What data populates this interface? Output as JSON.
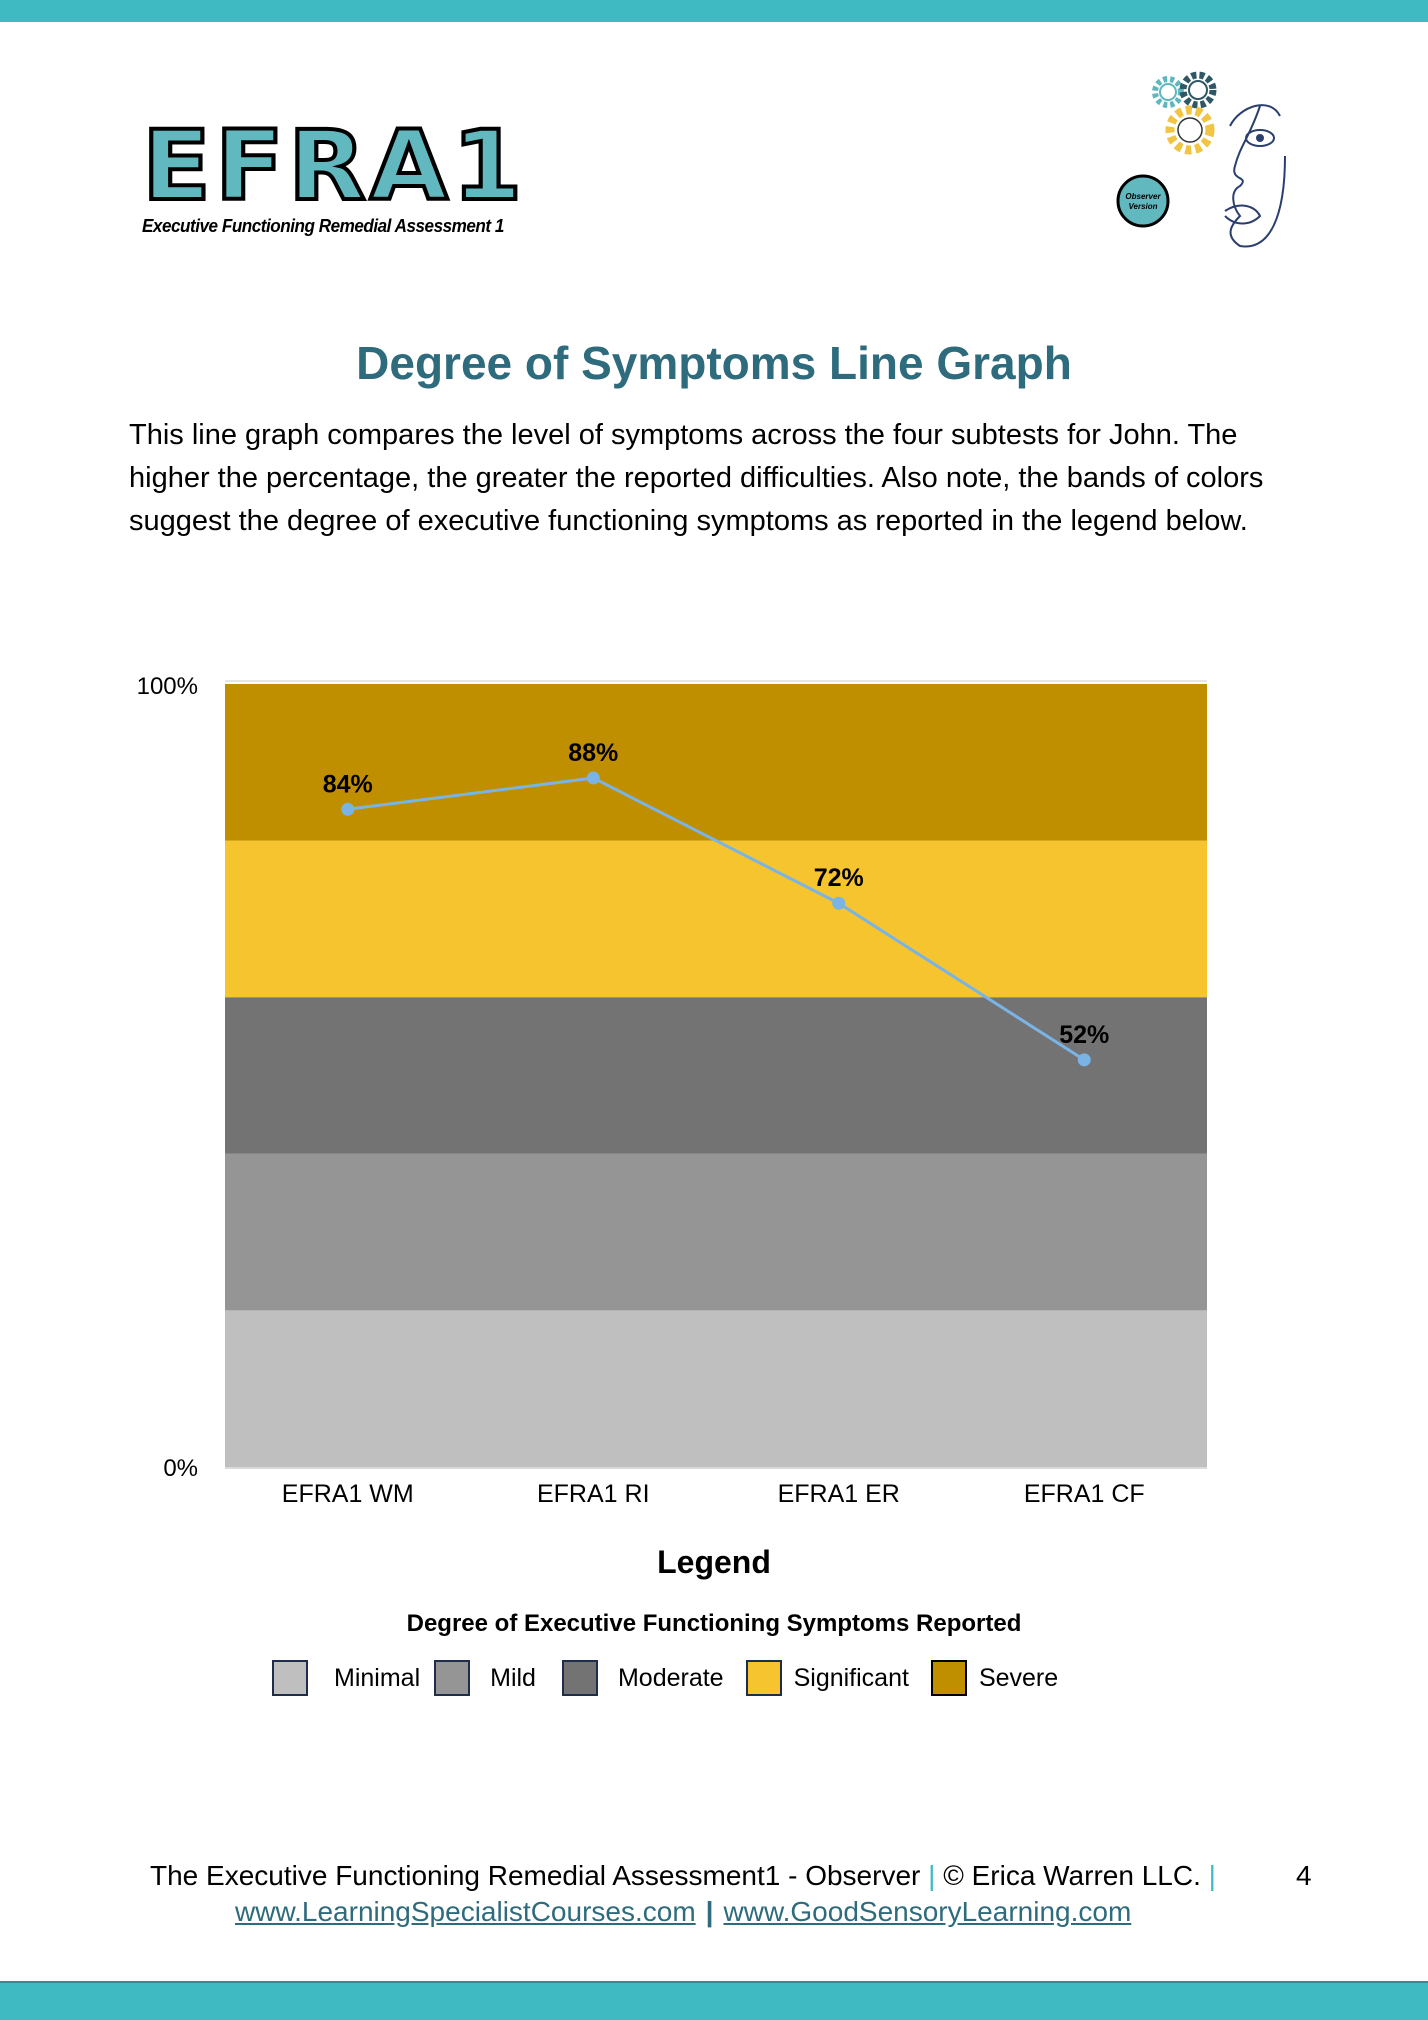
{
  "header": {
    "logo_text": "EFRA1",
    "logo_subtitle": "Executive Functioning Remedial Assessment 1",
    "badge_text": "Observer Version"
  },
  "title": "Degree of Symptoms Line Graph",
  "intro": "This line graph compares the level of symptoms across the four subtests for John. The higher the percentage, the greater the reported difficulties. Also note, the bands of colors suggest the degree of executive functioning symptoms as reported in the legend below.",
  "chart_data": {
    "type": "line",
    "categories": [
      "EFRA1 WM",
      "EFRA1 RI",
      "EFRA1 ER",
      "EFRA1 CF"
    ],
    "values": [
      84,
      88,
      72,
      52
    ],
    "data_labels": [
      "84%",
      "88%",
      "72%",
      "52%"
    ],
    "ylim": [
      0,
      100
    ],
    "y_ticks": [
      "0%",
      "100%"
    ],
    "line_color": "#7ab4e4",
    "bands": [
      {
        "name": "Minimal",
        "from": 0,
        "to": 20,
        "color": "#bfbfbf"
      },
      {
        "name": "Mild",
        "from": 20,
        "to": 40,
        "color": "#959595"
      },
      {
        "name": "Moderate",
        "from": 40,
        "to": 60,
        "color": "#737373"
      },
      {
        "name": "Significant",
        "from": 60,
        "to": 80,
        "color": "#f5c42f"
      },
      {
        "name": "Severe",
        "from": 80,
        "to": 100,
        "color": "#bf8f00"
      }
    ]
  },
  "legend": {
    "title": "Legend",
    "subtitle": "Degree of Executive Functioning Symptoms Reported",
    "items": [
      "Minimal",
      "Mild",
      "Moderate",
      "Significant",
      "Severe"
    ]
  },
  "footer": {
    "line1": "The Executive Functioning Remedial Assessment1 - Observer",
    "sep": "|",
    "copyright": "© Erica Warren LLC.",
    "page_number": "4",
    "link1": "www.LearningSpecialistCourses.com",
    "link2": "www.GoodSensoryLearning.com"
  },
  "colors": {
    "accent": "#3fbac2",
    "title": "#2e6b7c"
  }
}
